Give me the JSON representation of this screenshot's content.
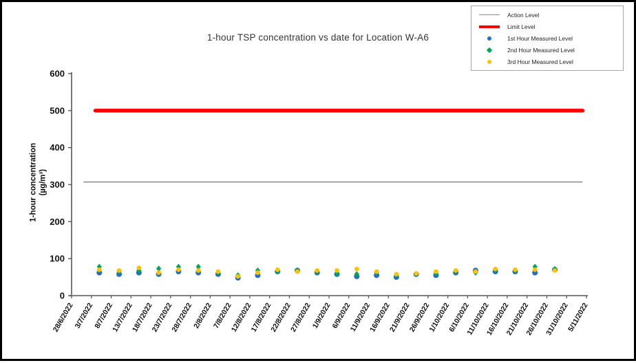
{
  "chart_data": {
    "type": "scatter",
    "title": "1-hour TSP concentration vs date for Location  W-A6",
    "ylabel_line1": "1-hour concentration",
    "ylabel_line2": "(µg/m³)",
    "ylim": [
      0,
      600
    ],
    "yticks": [
      0,
      100,
      200,
      300,
      400,
      500,
      600
    ],
    "grid": false,
    "legend_position": "top-right",
    "x_axis_start": "28/6/2022",
    "x_axis_end": "5/11/2022",
    "xticks": [
      "28/6/2022",
      "3/7/2022",
      "8/7/2022",
      "13/7/2022",
      "18/7/2022",
      "23/7/2022",
      "28/7/2022",
      "2/8/2022",
      "7/8/2022",
      "12/8/2022",
      "17/8/2022",
      "22/8/2022",
      "27/8/2022",
      "1/9/2022",
      "6/9/2022",
      "11/9/2022",
      "16/9/2022",
      "21/9/2022",
      "26/9/2022",
      "1/10/2022",
      "6/10/2022",
      "11/10/2022",
      "16/10/2022",
      "21/10/2022",
      "26/10/2022",
      "31/10/2022",
      "5/11/2022"
    ],
    "action_level": {
      "label": "Action Level",
      "value": 307,
      "color": "#808080",
      "date_from": "1/7/2022",
      "date_to": "4/11/2022"
    },
    "limit_level": {
      "label": "Limit Level",
      "value": 500,
      "color": "#ff0000",
      "date_from": "4/7/2022",
      "date_to": "4/11/2022"
    },
    "dates": [
      "5/7/2022",
      "10/7/2022",
      "15/7/2022",
      "20/7/2022",
      "25/7/2022",
      "30/7/2022",
      "4/8/2022",
      "9/8/2022",
      "14/8/2022",
      "19/8/2022",
      "24/8/2022",
      "29/8/2022",
      "3/9/2022",
      "8/9/2022",
      "13/9/2022",
      "18/9/2022",
      "23/9/2022",
      "28/9/2022",
      "3/10/2022",
      "8/10/2022",
      "13/10/2022",
      "18/10/2022",
      "23/10/2022",
      "28/10/2022"
    ],
    "series": [
      {
        "name": "1st Hour Measured Level",
        "color": "#1f70c1",
        "marker": "circle",
        "values": [
          62,
          58,
          62,
          58,
          65,
          62,
          58,
          48,
          55,
          65,
          68,
          62,
          58,
          52,
          55,
          50,
          58,
          55,
          62,
          68,
          65,
          65,
          62,
          70
        ]
      },
      {
        "name": "2nd Hour Measured Level",
        "color": "#00a651",
        "marker": "diamond",
        "values": [
          78,
          65,
          68,
          73,
          78,
          78,
          62,
          55,
          68,
          65,
          68,
          65,
          60,
          58,
          62,
          55,
          58,
          60,
          65,
          62,
          70,
          68,
          78,
          72
        ]
      },
      {
        "name": "3rd Hour Measured Level",
        "color": "#ffc000",
        "marker": "circle",
        "values": [
          70,
          68,
          75,
          62,
          70,
          68,
          65,
          52,
          62,
          70,
          65,
          68,
          68,
          72,
          65,
          58,
          60,
          65,
          68,
          65,
          72,
          70,
          70,
          68
        ]
      }
    ]
  }
}
